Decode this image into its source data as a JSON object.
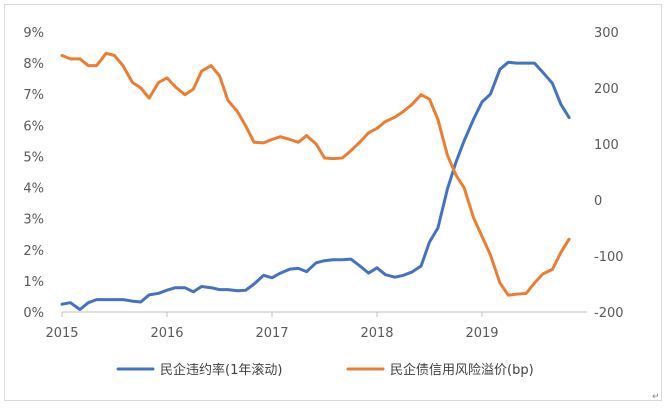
{
  "chart_data": {
    "type": "line",
    "title": "",
    "xlabel": "",
    "ylabel": "",
    "x_ticks": [
      "2015",
      "2016",
      "2017",
      "2018",
      "2019"
    ],
    "y_left": {
      "ticks": [
        "0%",
        "1%",
        "2%",
        "3%",
        "4%",
        "5%",
        "6%",
        "7%",
        "8%",
        "9%"
      ],
      "ylim": [
        0,
        9
      ],
      "unit": "%"
    },
    "y_right": {
      "ticks": [
        "-200",
        "-100",
        "0",
        "100",
        "200",
        "300"
      ],
      "ylim": [
        -200,
        300
      ]
    },
    "grid": false,
    "legend_position": "bottom",
    "x_range": [
      2015.0,
      2020.0
    ],
    "series": [
      {
        "name": "民企违约率(1年滚动)",
        "axis": "left",
        "color": "#4472C4",
        "x": [
          2015.0,
          2015.08,
          2015.17,
          2015.25,
          2015.33,
          2015.42,
          2015.5,
          2015.58,
          2015.67,
          2015.75,
          2015.83,
          2015.92,
          2016.0,
          2016.08,
          2016.17,
          2016.25,
          2016.33,
          2016.42,
          2016.5,
          2016.58,
          2016.67,
          2016.75,
          2016.83,
          2016.92,
          2017.0,
          2017.08,
          2017.17,
          2017.25,
          2017.33,
          2017.42,
          2017.5,
          2017.58,
          2017.67,
          2017.75,
          2017.83,
          2017.92,
          2018.0,
          2018.08,
          2018.17,
          2018.25,
          2018.33,
          2018.42,
          2018.5,
          2018.58,
          2018.67,
          2018.75,
          2018.83,
          2018.92,
          2019.0,
          2019.08,
          2019.17,
          2019.25,
          2019.33,
          2019.42,
          2019.5,
          2019.58,
          2019.67,
          2019.75,
          2019.83,
          2019.92
        ],
        "values": [
          0.25,
          0.3,
          0.08,
          0.3,
          0.4,
          0.4,
          0.4,
          0.4,
          0.35,
          0.32,
          0.55,
          0.6,
          0.7,
          0.78,
          0.78,
          0.65,
          0.82,
          0.78,
          0.72,
          0.72,
          0.68,
          0.7,
          0.9,
          1.18,
          1.1,
          1.25,
          1.38,
          1.4,
          1.3,
          1.58,
          1.65,
          1.68,
          1.68,
          1.7,
          1.5,
          1.25,
          1.42,
          1.2,
          1.12,
          1.18,
          1.28,
          1.48,
          2.25,
          2.7,
          3.95,
          4.8,
          5.5,
          6.2,
          6.75,
          7.0,
          7.8,
          8.03,
          8.0,
          8.0,
          8.0,
          7.7,
          7.35,
          6.68,
          6.25,
          null
        ]
      },
      {
        "name": "民企债信用风险溢价(bp)",
        "axis": "right",
        "color": "#ED7D31",
        "x": [
          2015.0,
          2015.08,
          2015.17,
          2015.25,
          2015.33,
          2015.42,
          2015.5,
          2015.58,
          2015.67,
          2015.75,
          2015.83,
          2015.92,
          2016.0,
          2016.08,
          2016.17,
          2016.25,
          2016.33,
          2016.42,
          2016.5,
          2016.58,
          2016.67,
          2016.75,
          2016.83,
          2016.92,
          2017.0,
          2017.08,
          2017.17,
          2017.25,
          2017.33,
          2017.42,
          2017.5,
          2017.58,
          2017.67,
          2017.75,
          2017.83,
          2017.92,
          2018.0,
          2018.08,
          2018.17,
          2018.25,
          2018.33,
          2018.42,
          2018.5,
          2018.58,
          2018.67,
          2018.75,
          2018.83,
          2018.92,
          2019.0,
          2019.08,
          2019.17,
          2019.25,
          2019.33,
          2019.42,
          2019.5,
          2019.58,
          2019.67,
          2019.75,
          2019.83,
          2019.92
        ],
        "values": [
          258,
          252,
          252,
          240,
          240,
          262,
          258,
          240,
          210,
          200,
          182,
          210,
          218,
          202,
          188,
          198,
          230,
          240,
          222,
          178,
          158,
          132,
          103,
          102,
          108,
          113,
          108,
          103,
          115,
          100,
          75,
          74,
          75,
          88,
          102,
          120,
          128,
          140,
          148,
          158,
          170,
          188,
          180,
          144,
          80,
          45,
          22,
          -32,
          -65,
          -98,
          -148,
          -170,
          -168,
          -167,
          -148,
          -132,
          -124,
          -94,
          -70,
          null
        ]
      }
    ]
  }
}
